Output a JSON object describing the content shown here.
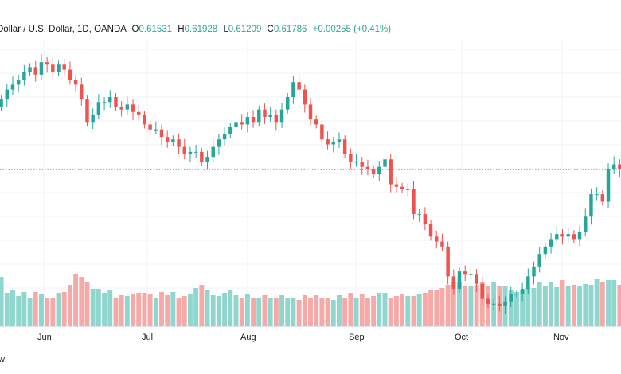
{
  "header": {
    "symbol": "Dollar / U.S. Dollar, 1D, OANDA",
    "open_label": "O",
    "open": "0.61531",
    "high_label": "H",
    "high": "0.61928",
    "low_label": "L",
    "low": "0.61209",
    "close_label": "C",
    "close": "0.61786",
    "change": "+0.00255 (+0.41%)"
  },
  "x_axis_labels": [
    "Jun",
    "Jul",
    "Aug",
    "Sep",
    "Oct",
    "Nov"
  ],
  "footer_text": "w",
  "colors": {
    "up": "#26a69a",
    "down": "#ef5350",
    "up_volume": "#8fd6cf",
    "down_volume": "#f7a9a8",
    "last_price_line": "#26a69a",
    "grid": "#f0f3fa"
  },
  "chart_data": {
    "type": "candlestick",
    "series_closes": [
      0.646,
      0.65,
      0.652,
      0.654,
      0.657,
      0.659,
      0.656,
      0.661,
      0.66,
      0.657,
      0.66,
      0.658,
      0.654,
      0.652,
      0.646,
      0.637,
      0.64,
      0.645,
      0.645,
      0.647,
      0.643,
      0.642,
      0.644,
      0.641,
      0.64,
      0.636,
      0.634,
      0.634,
      0.631,
      0.629,
      0.63,
      0.627,
      0.624,
      0.625,
      0.625,
      0.621,
      0.623,
      0.627,
      0.63,
      0.632,
      0.635,
      0.637,
      0.636,
      0.639,
      0.637,
      0.642,
      0.639,
      0.64,
      0.637,
      0.642,
      0.647,
      0.653,
      0.65,
      0.644,
      0.638,
      0.636,
      0.63,
      0.628,
      0.629,
      0.63,
      0.624,
      0.621,
      0.621,
      0.619,
      0.618,
      0.616,
      0.619,
      0.622,
      0.612,
      0.611,
      0.61,
      0.61,
      0.6,
      0.6,
      0.596,
      0.591,
      0.589,
      0.587,
      0.575,
      0.57,
      0.577,
      0.576,
      0.576,
      0.572,
      0.566,
      0.564,
      0.564,
      0.563,
      0.565,
      0.568,
      0.568,
      0.57,
      0.575,
      0.579,
      0.584,
      0.587,
      0.59,
      0.592,
      0.591,
      0.592,
      0.59,
      0.593,
      0.599,
      0.608,
      0.608,
      0.605,
      0.618,
      0.62,
      0.618
    ],
    "volume_relative": [
      0.62,
      0.42,
      0.45,
      0.38,
      0.43,
      0.36,
      0.43,
      0.4,
      0.35,
      0.36,
      0.42,
      0.43,
      0.52,
      0.66,
      0.62,
      0.55,
      0.47,
      0.47,
      0.42,
      0.45,
      0.35,
      0.39,
      0.38,
      0.4,
      0.42,
      0.42,
      0.4,
      0.36,
      0.43,
      0.39,
      0.43,
      0.35,
      0.38,
      0.4,
      0.48,
      0.52,
      0.45,
      0.39,
      0.38,
      0.42,
      0.45,
      0.39,
      0.36,
      0.4,
      0.35,
      0.36,
      0.39,
      0.36,
      0.36,
      0.39,
      0.36,
      0.36,
      0.33,
      0.39,
      0.35,
      0.39,
      0.35,
      0.36,
      0.33,
      0.39,
      0.36,
      0.42,
      0.36,
      0.4,
      0.35,
      0.38,
      0.42,
      0.42,
      0.36,
      0.38,
      0.4,
      0.38,
      0.38,
      0.4,
      0.42,
      0.46,
      0.46,
      0.48,
      0.52,
      0.56,
      0.55,
      0.5,
      0.51,
      0.52,
      0.55,
      0.5,
      0.56,
      0.5,
      0.5,
      0.45,
      0.43,
      0.45,
      0.48,
      0.48,
      0.55,
      0.51,
      0.55,
      0.49,
      0.58,
      0.51,
      0.52,
      0.5,
      0.53,
      0.52,
      0.6,
      0.55,
      0.58,
      0.58,
      0.52
    ],
    "last_price": 0.6179,
    "ylim": [
      0.555,
      0.67
    ],
    "grid": true
  }
}
